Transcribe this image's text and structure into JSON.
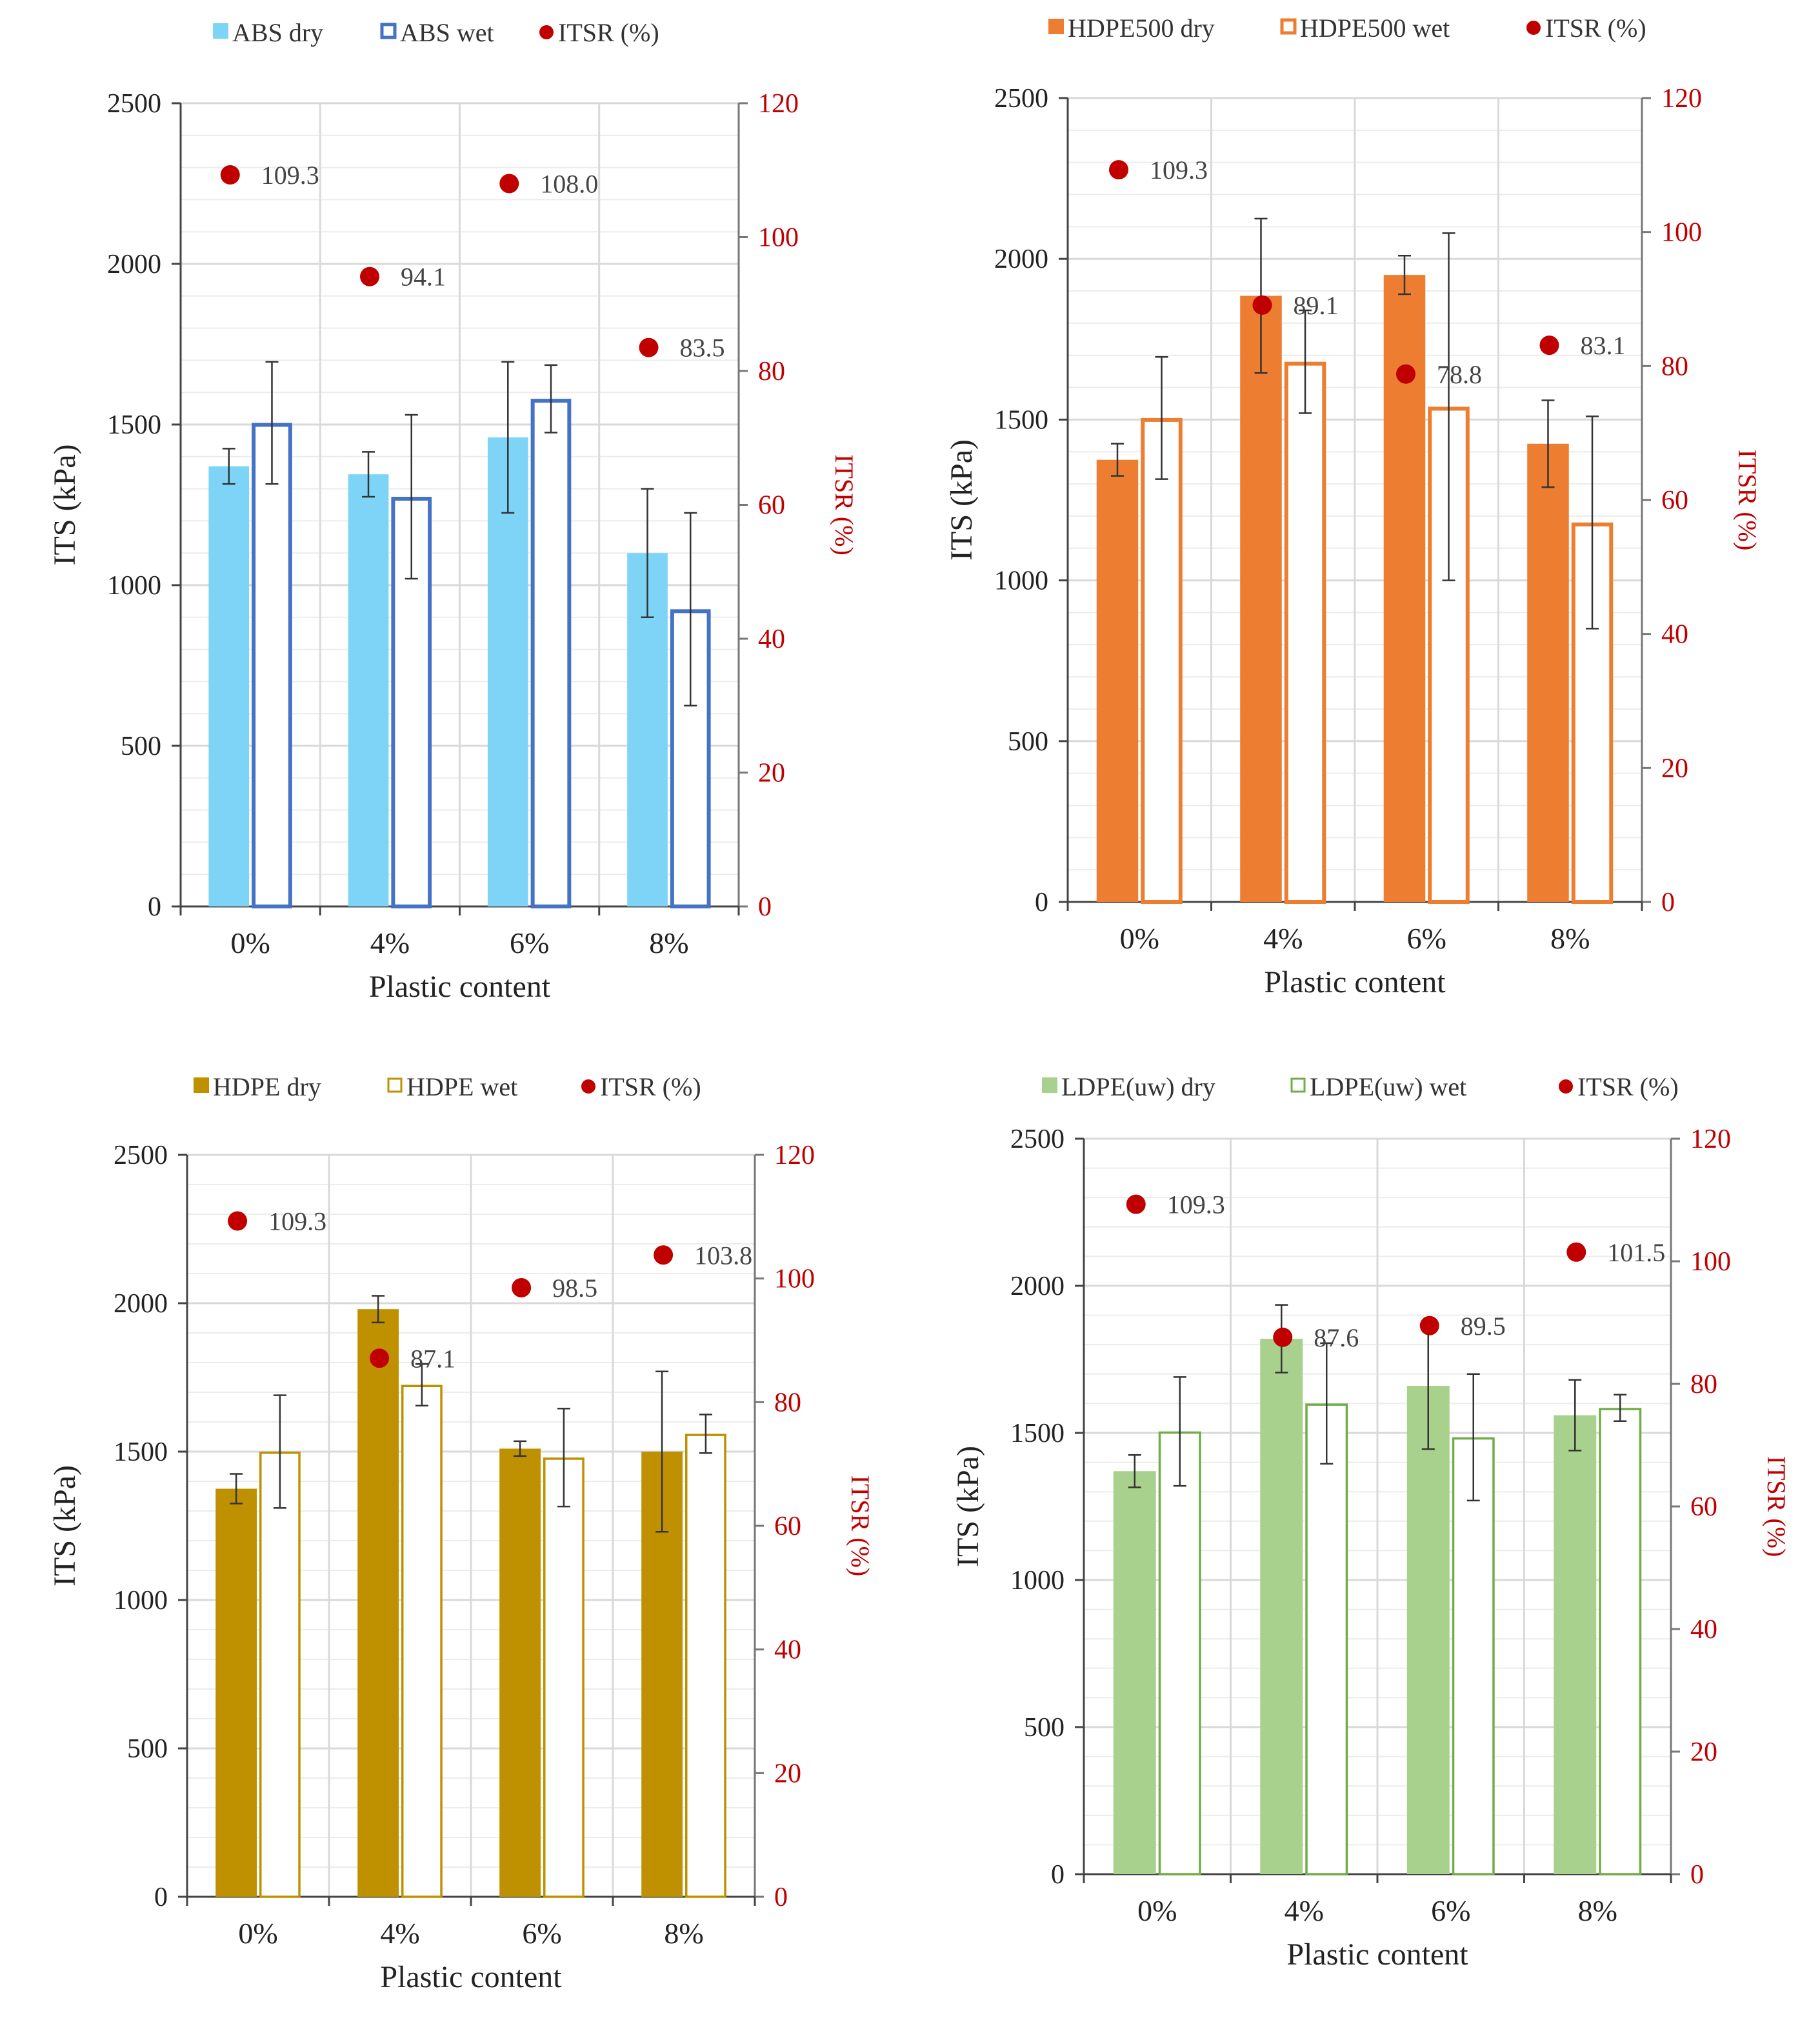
{
  "colors": {
    "itsr": "#c00000",
    "grid": "#d9d9d9",
    "axis": "#444444",
    "right_axis": "#c00000"
  },
  "chart_data": [
    {
      "type": "bar",
      "legend": [
        "ABS dry",
        "ABS wet",
        "ITSR (%)"
      ],
      "categories": [
        "0%",
        "4%",
        "6%",
        "8%"
      ],
      "xlabel": "Plastic content",
      "ylabel": "ITS (kPa)",
      "y2label": "ITSR (%)",
      "ylim": [
        0,
        2500
      ],
      "y2lim": [
        0,
        120
      ],
      "yticks": [
        0,
        500,
        1000,
        1500,
        2000,
        2500
      ],
      "y2ticks": [
        0,
        20,
        40,
        60,
        80,
        100,
        120
      ],
      "dry_color": "#7dd4f7",
      "wet_color": "#4472c4",
      "wet_style": "outline",
      "series": [
        {
          "name": "ABS dry",
          "values": [
            1370,
            1345,
            1460,
            1100
          ],
          "err": [
            55,
            70,
            235,
            200
          ]
        },
        {
          "name": "ABS wet",
          "values": [
            1505,
            1275,
            1580,
            925
          ],
          "err": [
            190,
            255,
            105,
            300
          ]
        },
        {
          "name": "ITSR (%)",
          "values": [
            109.3,
            94.1,
            108.0,
            83.5
          ]
        }
      ],
      "itsr_labels": [
        "109.3",
        "94.1",
        "108.0",
        "83.5"
      ]
    },
    {
      "type": "bar",
      "legend": [
        "HDPE500 dry",
        "HDPE500 wet",
        "ITSR (%)"
      ],
      "categories": [
        "0%",
        "4%",
        "6%",
        "8%"
      ],
      "xlabel": "Plastic content",
      "ylabel": "ITS (kPa)",
      "y2label": "ITSR (%)",
      "ylim": [
        0,
        2500
      ],
      "y2lim": [
        0,
        120
      ],
      "yticks": [
        0,
        500,
        1000,
        1500,
        2000,
        2500
      ],
      "y2ticks": [
        0,
        20,
        40,
        60,
        80,
        100,
        120
      ],
      "dry_color": "#ed7d31",
      "wet_color": "#ed7d31",
      "wet_style": "outline",
      "series": [
        {
          "name": "HDPE500 dry",
          "values": [
            1375,
            1885,
            1950,
            1425
          ],
          "err": [
            50,
            240,
            60,
            135
          ]
        },
        {
          "name": "HDPE500 wet",
          "values": [
            1505,
            1680,
            1540,
            1180
          ],
          "err": [
            190,
            160,
            540,
            330
          ]
        },
        {
          "name": "ITSR (%)",
          "values": [
            109.3,
            89.1,
            78.8,
            83.1
          ]
        }
      ],
      "itsr_labels": [
        "109.3",
        "89.1",
        "78.8",
        "83.1"
      ]
    },
    {
      "type": "bar",
      "legend": [
        "HDPE dry",
        "HDPE wet",
        "ITSR (%)"
      ],
      "categories": [
        "0%",
        "4%",
        "6%",
        "8%"
      ],
      "xlabel": "Plastic content",
      "ylabel": "ITS (kPa)",
      "y2label": "ITSR (%)",
      "ylim": [
        0,
        2500
      ],
      "y2lim": [
        0,
        120
      ],
      "yticks": [
        0,
        500,
        1000,
        1500,
        2000,
        2500
      ],
      "y2ticks": [
        0,
        20,
        40,
        60,
        80,
        100,
        120
      ],
      "dry_color": "#bf9000",
      "wet_color": "#bf9000",
      "wet_style": "outline-thin",
      "series": [
        {
          "name": "HDPE dry",
          "values": [
            1375,
            1980,
            1510,
            1500
          ],
          "err": [
            50,
            45,
            25,
            270
          ]
        },
        {
          "name": "HDPE wet",
          "values": [
            1500,
            1725,
            1480,
            1560
          ],
          "err": [
            190,
            70,
            165,
            65
          ]
        },
        {
          "name": "ITSR (%)",
          "values": [
            109.3,
            87.1,
            98.5,
            103.8
          ]
        }
      ],
      "itsr_labels": [
        "109.3",
        "87.1",
        "98.5",
        "103.8"
      ]
    },
    {
      "type": "bar",
      "legend": [
        "LDPE(uw) dry",
        "LDPE(uw) wet",
        "ITSR (%)"
      ],
      "categories": [
        "0%",
        "4%",
        "6%",
        "8%"
      ],
      "xlabel": "Plastic content",
      "ylabel": "ITS (kPa)",
      "y2label": "ITSR (%)",
      "ylim": [
        0,
        2500
      ],
      "y2lim": [
        0,
        120
      ],
      "yticks": [
        0,
        500,
        1000,
        1500,
        2000,
        2500
      ],
      "y2ticks": [
        0,
        20,
        40,
        60,
        80,
        100,
        120
      ],
      "dry_color": "#a9d18e",
      "wet_color": "#70ad47",
      "wet_style": "outline-thin",
      "series": [
        {
          "name": "LDPE(uw) dry",
          "values": [
            1370,
            1820,
            1660,
            1560
          ],
          "err": [
            55,
            115,
            215,
            120
          ]
        },
        {
          "name": "LDPE(uw) wet",
          "values": [
            1505,
            1600,
            1485,
            1585
          ],
          "err": [
            185,
            205,
            215,
            45
          ]
        },
        {
          "name": "ITSR (%)",
          "values": [
            109.3,
            87.6,
            89.5,
            101.5
          ]
        }
      ],
      "itsr_labels": [
        "109.3",
        "87.6",
        "89.5",
        "101.5"
      ]
    }
  ]
}
